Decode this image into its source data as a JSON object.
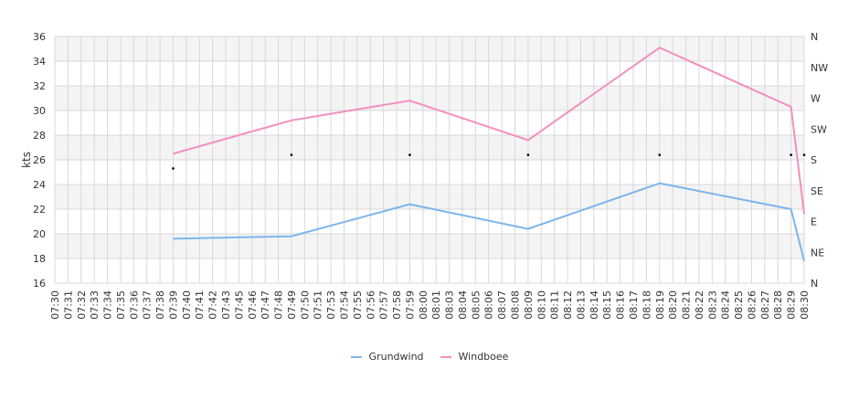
{
  "chart_data": {
    "type": "line",
    "title": "",
    "xlabel": "",
    "ylabel": "kts",
    "ylim": [
      16,
      36
    ],
    "yticks": [
      16,
      18,
      20,
      22,
      24,
      26,
      28,
      30,
      32,
      34,
      36
    ],
    "y2ticks": [
      "N",
      "NE",
      "E",
      "SE",
      "S",
      "SW",
      "W",
      "NW",
      "N"
    ],
    "grid": true,
    "legend_position": "bottom",
    "categories": [
      "07:30",
      "07:31",
      "07:32",
      "07:33",
      "07:34",
      "07:35",
      "07:36",
      "07:37",
      "07:38",
      "07:39",
      "07:40",
      "07:41",
      "07:42",
      "07:43",
      "07:45",
      "07:46",
      "07:47",
      "07:48",
      "07:49",
      "07:50",
      "07:51",
      "07:53",
      "07:54",
      "07:55",
      "07:56",
      "07:57",
      "07:58",
      "07:59",
      "08:00",
      "08:01",
      "08:03",
      "08:04",
      "08:05",
      "08:06",
      "08:07",
      "08:08",
      "08:09",
      "08:10",
      "08:11",
      "08:12",
      "08:13",
      "08:14",
      "08:15",
      "08:16",
      "08:17",
      "08:18",
      "08:19",
      "08:20",
      "08:21",
      "08:22",
      "08:23",
      "08:24",
      "08:25",
      "08:26",
      "08:27",
      "08:28",
      "08:29",
      "08:30"
    ],
    "series": [
      {
        "name": "Grundwind",
        "color": "#7cb5ec",
        "points": [
          [
            "07:39",
            19.6
          ],
          [
            "07:49",
            19.8
          ],
          [
            "07:59",
            22.4
          ],
          [
            "08:09",
            20.4
          ],
          [
            "08:19",
            24.1
          ],
          [
            "08:29",
            22.0
          ],
          [
            "08:30",
            17.8
          ]
        ]
      },
      {
        "name": "Windboee",
        "color": "#f28fc0",
        "points": [
          [
            "07:39",
            26.5
          ],
          [
            "07:49",
            29.2
          ],
          [
            "07:59",
            30.8
          ],
          [
            "08:09",
            27.6
          ],
          [
            "08:19",
            35.1
          ],
          [
            "08:29",
            30.3
          ],
          [
            "08:30",
            21.6
          ]
        ]
      }
    ],
    "direction_markers": [
      [
        "07:39",
        25.3
      ],
      [
        "07:49",
        26.4
      ],
      [
        "07:59",
        26.4
      ],
      [
        "08:09",
        26.4
      ],
      [
        "08:19",
        26.4
      ],
      [
        "08:29",
        26.4
      ],
      [
        "08:30",
        26.4
      ]
    ]
  }
}
